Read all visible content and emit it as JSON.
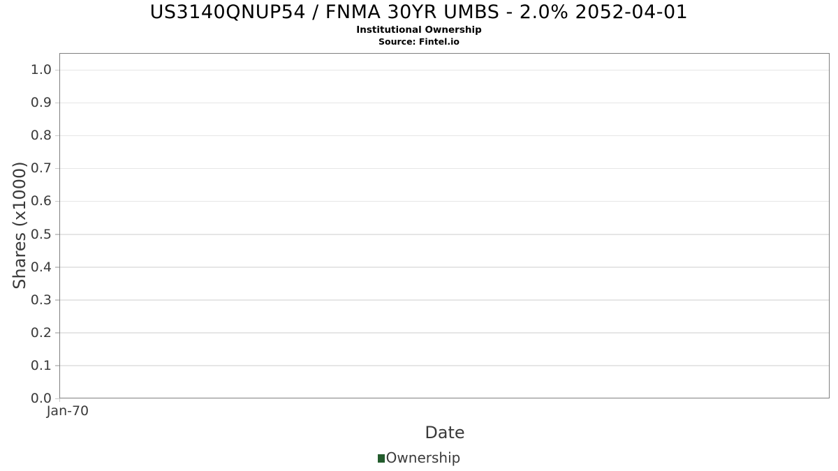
{
  "header": {
    "title": "US3140QNUP54 / FNMA 30YR UMBS - 2.0% 2052-04-01",
    "subtitle": "Institutional Ownership",
    "source": "Source: Fintel.io"
  },
  "legend": {
    "items": [
      {
        "label": "Ownership",
        "marker_color": "#235c2d"
      }
    ]
  },
  "chart_data": {
    "type": "line",
    "title": "US3140QNUP54 / FNMA 30YR UMBS - 2.0% 2052-04-01",
    "subtitle": "Institutional Ownership",
    "source": "Source: Fintel.io",
    "xlabel": "Date",
    "ylabel": "Shares (x1000)",
    "x_ticks": [
      "Jan-70"
    ],
    "y_ticks": [
      "0.0",
      "0.1",
      "0.2",
      "0.3",
      "0.4",
      "0.5",
      "0.6",
      "0.7",
      "0.8",
      "0.9",
      "1.0"
    ],
    "ylim": [
      0.0,
      1.05
    ],
    "grid": true,
    "grid_color": "#e6e6e6",
    "axis_border_color": "#7f7f7f",
    "text_color": "#3a3a3a",
    "legend_position": "bottom-center",
    "series": [
      {
        "name": "Ownership",
        "color": "#235c2d",
        "x": [],
        "y": []
      }
    ]
  }
}
